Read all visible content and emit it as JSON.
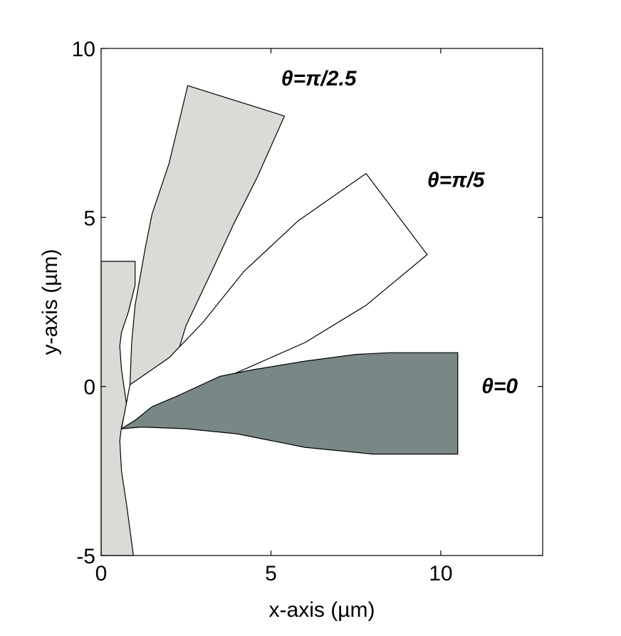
{
  "chart_data": {
    "type": "area",
    "title": "",
    "xlabel": "x-axis (µm)",
    "ylabel": "y-axis (µm)",
    "xlim": [
      0,
      13
    ],
    "ylim": [
      -5,
      10
    ],
    "xticks": [
      0,
      5,
      10
    ],
    "yticks": [
      -5,
      0,
      5,
      10
    ],
    "xtick_labels": [
      "0",
      "5",
      "10"
    ],
    "ytick_labels": [
      "-5",
      "0",
      "5",
      "10"
    ],
    "grid": false,
    "box": true,
    "shapes": [
      {
        "annotation": "θ=π/2.5",
        "annotation_at": [
          5.3,
          8.9
        ],
        "fill": "#d9dcd6",
        "points": [
          [
            0,
            3.7
          ],
          [
            1.0,
            3.7
          ],
          [
            1.0,
            3.0
          ],
          [
            0.8,
            2.2
          ],
          [
            0.6,
            1.6
          ],
          [
            0.55,
            1.2
          ],
          [
            0.6,
            0.5
          ],
          [
            0.7,
            -0.2
          ],
          [
            0.75,
            -0.55
          ],
          [
            0.6,
            -1.2
          ],
          [
            0.55,
            -1.6
          ],
          [
            0.6,
            -2.5
          ],
          [
            0.75,
            -3.5
          ],
          [
            0.95,
            -5.0
          ],
          [
            0,
            -5.0
          ]
        ]
      },
      {
        "annotation": "",
        "annotation_at": [
          0,
          0
        ],
        "fill": "#d9dcd6",
        "points": [
          [
            0.85,
            0.05
          ],
          [
            0.9,
            1.3
          ],
          [
            1.0,
            2.4
          ],
          [
            1.3,
            4.1
          ],
          [
            1.5,
            5.1
          ],
          [
            2.0,
            6.6
          ],
          [
            2.55,
            8.9
          ],
          [
            5.4,
            8.0
          ],
          [
            4.6,
            6.2
          ],
          [
            3.9,
            4.8
          ],
          [
            3.3,
            3.5
          ],
          [
            2.5,
            1.8
          ],
          [
            1.8,
            -0.5
          ],
          [
            1.0,
            -1.0
          ],
          [
            0.6,
            -1.25
          ],
          [
            0.75,
            -0.55
          ],
          [
            0.85,
            0.05
          ]
        ]
      },
      {
        "annotation": "θ=π/5",
        "annotation_at": [
          9.6,
          5.9
        ],
        "fill": "#ffffff",
        "points": [
          [
            0.85,
            0.05
          ],
          [
            2.0,
            0.85
          ],
          [
            3.0,
            1.9
          ],
          [
            4.2,
            3.4
          ],
          [
            5.8,
            4.9
          ],
          [
            7.8,
            6.3
          ],
          [
            9.6,
            3.9
          ],
          [
            7.8,
            2.4
          ],
          [
            6.0,
            1.3
          ],
          [
            4.2,
            0.5
          ],
          [
            2.8,
            -0.1
          ],
          [
            1.5,
            -0.7
          ],
          [
            0.6,
            -1.25
          ]
        ]
      },
      {
        "annotation": "θ=0",
        "annotation_at": [
          11.2,
          -0.2
        ],
        "fill": "#798887",
        "points": [
          [
            0.6,
            -1.25
          ],
          [
            1.0,
            -1.0
          ],
          [
            1.5,
            -0.6
          ],
          [
            2.2,
            -0.3
          ],
          [
            3.5,
            0.3
          ],
          [
            4.5,
            0.5
          ],
          [
            6.0,
            0.75
          ],
          [
            7.5,
            0.95
          ],
          [
            8.5,
            1.0
          ],
          [
            10.5,
            1.0
          ],
          [
            10.5,
            -2.0
          ],
          [
            8.0,
            -2.0
          ],
          [
            6.0,
            -1.8
          ],
          [
            5.0,
            -1.6
          ],
          [
            4.0,
            -1.4
          ],
          [
            2.5,
            -1.25
          ],
          [
            1.2,
            -1.2
          ],
          [
            0.6,
            -1.25
          ]
        ]
      }
    ]
  }
}
